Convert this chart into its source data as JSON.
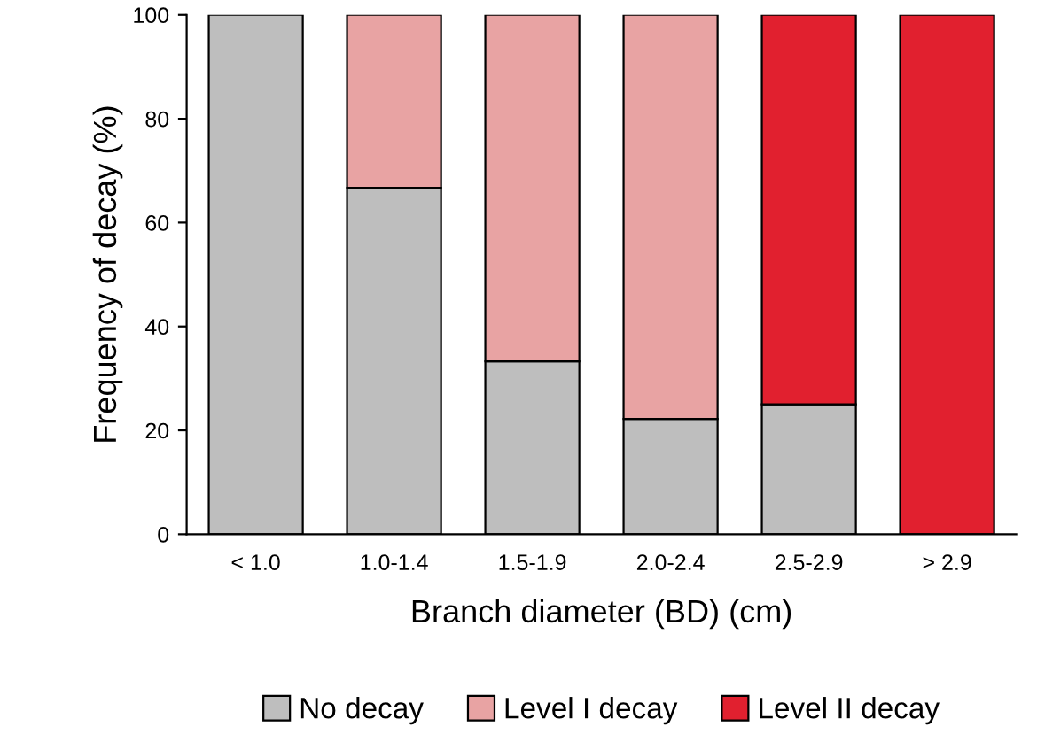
{
  "chart_data": {
    "type": "bar",
    "stacked": true,
    "xlabel": "Branch diameter (BD) (cm)",
    "ylabel": "Frequency of decay (%)",
    "categories": [
      "< 1.0",
      "1.0-1.4",
      "1.5-1.9",
      "2.0-2.4",
      "2.5-2.9",
      "> 2.9"
    ],
    "series": [
      {
        "name": "No decay",
        "color": "#bebebe",
        "values": [
          100,
          66.7,
          33.3,
          22.2,
          25,
          0
        ]
      },
      {
        "name": "Level I decay",
        "color": "#e8a3a3",
        "values": [
          0,
          33.3,
          66.7,
          77.8,
          0,
          0
        ]
      },
      {
        "name": "Level II decay",
        "color": "#e1202f",
        "values": [
          0,
          0,
          0,
          0,
          75,
          100
        ]
      }
    ],
    "ylim": [
      0,
      100
    ],
    "yticks": [
      0,
      20,
      40,
      60,
      80,
      100
    ],
    "grid": false,
    "legend": "bottom"
  }
}
